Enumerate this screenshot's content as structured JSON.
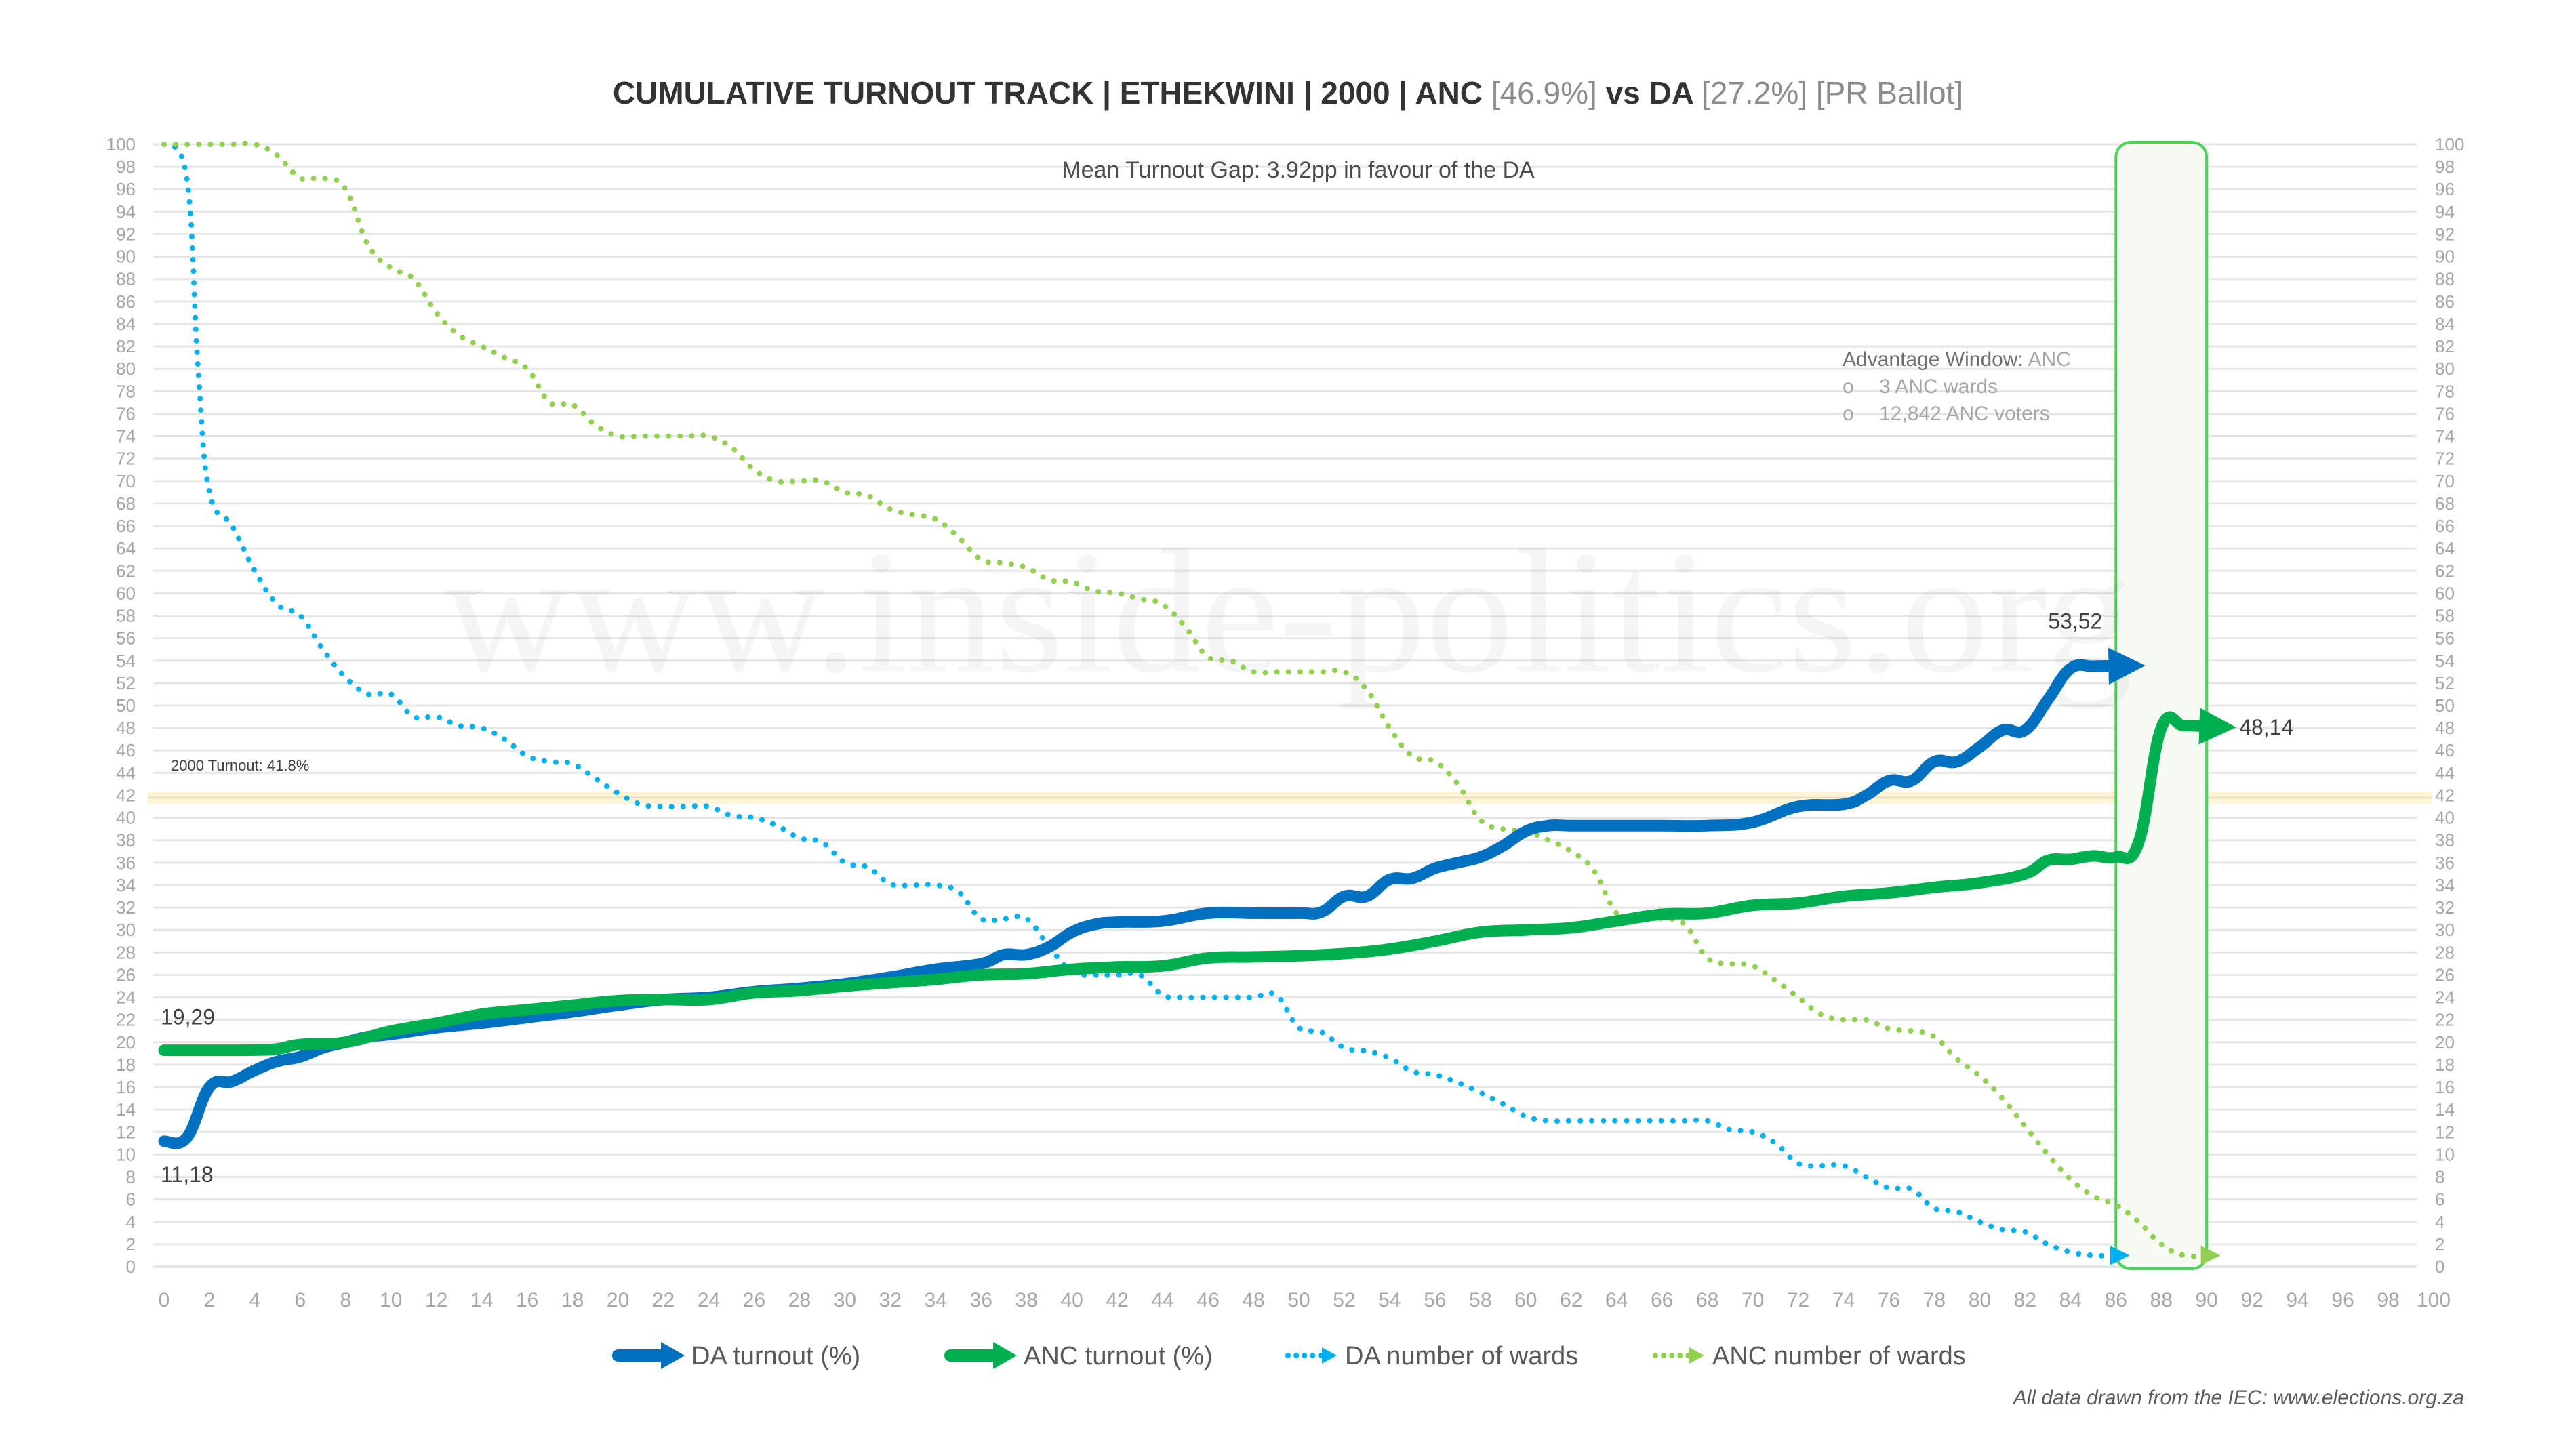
{
  "title": {
    "main": "CUMULATIVE TURNOUT TRACK | ETHEKWINI | 2000 | ANC ",
    "anc_share": "[46.9%]",
    "vs": " vs DA ",
    "da_share": "[27.2%]",
    "ballot": " [PR Ballot]"
  },
  "subtitle": "Mean Turnout Gap: 3.92pp in favour of the DA",
  "watermark": "www.inside-politics.org",
  "annotation": {
    "heading": "Advantage Window: ",
    "party": "ANC",
    "bullets": [
      "3 ANC wards",
      "12,842 ANC voters"
    ],
    "bullet_glyph": "o"
  },
  "reference_line": {
    "label": "2000 Turnout: 41.8%",
    "value": 41.8,
    "color": "#fff3d6"
  },
  "advantage_window": {
    "x_start": 86,
    "x_end": 90,
    "color": "#4cd35a"
  },
  "footer": "All data drawn from the IEC: www.elections.org.za",
  "colors": {
    "da_turnout": "#0070c0",
    "anc_turnout": "#00b050",
    "da_wards": "#00b0f0",
    "anc_wards": "#92d050",
    "grid": "#e6e6e6",
    "axis_text": "#a6a6a6"
  },
  "chart_data": {
    "type": "line",
    "title": "CUMULATIVE TURNOUT TRACK | ETHEKWINI | 2000 | ANC [46.9%] vs DA [27.2%] [PR Ballot]",
    "xlabel": "",
    "ylabel": "",
    "xlim": [
      0,
      100
    ],
    "ylim": [
      0,
      100
    ],
    "x_ticks": [
      0,
      2,
      4,
      6,
      8,
      10,
      12,
      14,
      16,
      18,
      20,
      22,
      24,
      26,
      28,
      30,
      32,
      34,
      36,
      38,
      40,
      42,
      44,
      46,
      48,
      50,
      52,
      54,
      56,
      58,
      60,
      62,
      64,
      66,
      68,
      70,
      72,
      74,
      76,
      78,
      80,
      82,
      84,
      86,
      88,
      90,
      92,
      94,
      96,
      98,
      100
    ],
    "y_ticks": [
      0,
      2,
      4,
      6,
      8,
      10,
      12,
      14,
      16,
      18,
      20,
      22,
      24,
      26,
      28,
      30,
      32,
      34,
      36,
      38,
      40,
      42,
      44,
      46,
      48,
      50,
      52,
      54,
      56,
      58,
      60,
      62,
      64,
      66,
      68,
      70,
      72,
      74,
      76,
      78,
      80,
      82,
      84,
      86,
      88,
      90,
      92,
      94,
      96,
      98,
      100
    ],
    "grid": true,
    "legend_position": "bottom",
    "series": [
      {
        "name": "DA turnout (%)",
        "style": "thick-arrow",
        "x": [
          0,
          1,
          2,
          3,
          4,
          5,
          6,
          7,
          8,
          9,
          10,
          12,
          14,
          16,
          18,
          20,
          22,
          24,
          26,
          28,
          30,
          32,
          34,
          36,
          37,
          38,
          39,
          40,
          41,
          42,
          44,
          46,
          48,
          50,
          51,
          52,
          53,
          54,
          55,
          56,
          57,
          58,
          59,
          60,
          61,
          62,
          64,
          66,
          68,
          70,
          72,
          74,
          75,
          76,
          77,
          78,
          79,
          80,
          81,
          82,
          83,
          84,
          85,
          86
        ],
        "y": [
          11.18,
          11.5,
          16,
          16.5,
          17.5,
          18.3,
          18.7,
          19.5,
          20,
          20.5,
          20.7,
          21.3,
          21.7,
          22.2,
          22.7,
          23.3,
          23.8,
          24,
          24.5,
          24.8,
          25.2,
          25.8,
          26.5,
          27,
          27.8,
          27.8,
          28.5,
          29.8,
          30.5,
          30.7,
          30.8,
          31.5,
          31.5,
          31.5,
          31.6,
          33,
          33,
          34.5,
          34.6,
          35.5,
          36,
          36.5,
          37.5,
          38.8,
          39.3,
          39.3,
          39.3,
          39.3,
          39.3,
          39.6,
          41,
          41.2,
          42,
          43.3,
          43.3,
          45,
          45,
          46.3,
          47.8,
          47.8,
          50.5,
          53.3,
          53.5,
          53.52
        ]
      },
      {
        "name": "ANC turnout (%)",
        "style": "thick-arrow",
        "x": [
          0,
          2,
          4,
          5,
          6,
          8,
          10,
          12,
          14,
          16,
          18,
          20,
          22,
          24,
          26,
          28,
          30,
          32,
          34,
          36,
          38,
          40,
          42,
          44,
          46,
          48,
          50,
          52,
          54,
          56,
          58,
          60,
          62,
          64,
          66,
          68,
          70,
          72,
          74,
          76,
          78,
          80,
          82,
          83,
          84,
          85,
          86,
          87,
          88,
          89,
          90
        ],
        "y": [
          19.29,
          19.29,
          19.3,
          19.4,
          19.8,
          20,
          21,
          21.7,
          22.5,
          22.9,
          23.3,
          23.7,
          23.8,
          23.8,
          24.4,
          24.6,
          25,
          25.3,
          25.6,
          26,
          26.1,
          26.5,
          26.7,
          26.8,
          27.5,
          27.6,
          27.7,
          27.9,
          28.3,
          29,
          29.8,
          30,
          30.2,
          30.8,
          31.4,
          31.5,
          32.2,
          32.4,
          33,
          33.3,
          33.8,
          34.2,
          35,
          36.2,
          36.3,
          36.6,
          36.5,
          37.8,
          48,
          48.2,
          48.14
        ]
      },
      {
        "name": "DA number of wards",
        "style": "dotted-arrow",
        "x": [
          0,
          1,
          1.5,
          2,
          3,
          4,
          5,
          6,
          7,
          8,
          9,
          10,
          11,
          12,
          13,
          14,
          15,
          16,
          17,
          18,
          19,
          20,
          21,
          22,
          23,
          24,
          25,
          26,
          27,
          28,
          29,
          30,
          31,
          32,
          33,
          34,
          35,
          36,
          37,
          38,
          39,
          40,
          41,
          42,
          43,
          44,
          45,
          46,
          47,
          48,
          49,
          50,
          51,
          52,
          53,
          54,
          55,
          56,
          57,
          58,
          59,
          60,
          61,
          62,
          63,
          64,
          65,
          66,
          67,
          68,
          69,
          70,
          71,
          72,
          73,
          74,
          75,
          76,
          77,
          78,
          79,
          80,
          81,
          82,
          83,
          84,
          85,
          86
        ],
        "y": [
          100,
          97,
          80,
          69,
          66,
          62,
          59,
          58,
          55,
          52.5,
          51,
          51,
          49,
          49,
          48.2,
          48,
          47,
          45.5,
          45,
          44.8,
          43.5,
          42.2,
          41.2,
          41,
          41,
          41,
          40.2,
          40,
          39.3,
          38.2,
          37.8,
          36,
          35.6,
          34.1,
          34,
          34,
          33.4,
          31,
          31,
          31,
          28.5,
          26.3,
          26,
          26,
          26,
          24.2,
          24,
          24,
          24,
          24,
          24.2,
          21.3,
          20.9,
          19.5,
          19.2,
          18.6,
          17.4,
          17.1,
          16.4,
          15.5,
          14.5,
          13.4,
          13,
          13,
          13,
          13,
          13,
          13,
          13,
          13,
          12.2,
          12,
          11,
          9.2,
          9,
          9,
          8,
          7,
          6.9,
          5.2,
          4.9,
          4,
          3.3,
          3.1,
          2,
          1.3,
          1,
          1
        ]
      },
      {
        "name": "ANC number of wards",
        "style": "dotted-arrow",
        "x": [
          0,
          1,
          2,
          3,
          4,
          5,
          6,
          7,
          8,
          9,
          10,
          11,
          12,
          13,
          14,
          15,
          16,
          17,
          18,
          19,
          20,
          21,
          22,
          23,
          24,
          25,
          26,
          27,
          28,
          29,
          30,
          31,
          32,
          33,
          34,
          35,
          36,
          37,
          38,
          39,
          40,
          41,
          42,
          43,
          44,
          45,
          46,
          47,
          48,
          49,
          50,
          51,
          52,
          53,
          54,
          55,
          56,
          57,
          58,
          59,
          60,
          61,
          62,
          63,
          64,
          65,
          66,
          67,
          68,
          69,
          70,
          71,
          72,
          73,
          74,
          75,
          76,
          77,
          78,
          79,
          80,
          81,
          82,
          83,
          84,
          85,
          86,
          87,
          88,
          89,
          90
        ],
        "y": [
          100,
          100,
          100,
          100,
          100,
          99,
          97,
          97,
          96,
          91,
          89,
          88,
          85,
          83,
          82,
          81,
          80,
          77,
          76.8,
          75,
          74,
          74,
          74,
          74,
          74,
          73,
          71,
          70,
          70,
          70,
          69,
          68.7,
          67.5,
          67,
          66.6,
          65,
          63,
          62.7,
          62.3,
          61.2,
          61,
          60.2,
          60,
          59.5,
          59,
          57,
          54.3,
          54,
          53,
          53,
          53,
          53,
          53,
          51.4,
          48,
          45.5,
          45,
          43,
          39.8,
          39,
          38.8,
          38,
          37,
          35.3,
          31.5,
          31,
          31,
          30.5,
          27.5,
          27,
          26.8,
          25.5,
          24,
          22.5,
          22,
          22,
          21.2,
          21,
          20.5,
          18.5,
          17,
          15,
          12.5,
          10,
          7.8,
          6.3,
          5.5,
          4,
          2,
          1,
          1
        ]
      }
    ],
    "data_labels": [
      {
        "series": "DA turnout (%)",
        "x": 0,
        "y": 11.18,
        "text": "11,18"
      },
      {
        "series": "ANC turnout (%)",
        "x": 0,
        "y": 19.29,
        "text": "19,29"
      },
      {
        "series": "DA turnout (%)",
        "x": 86,
        "y": 53.52,
        "text": "53,52"
      },
      {
        "series": "ANC turnout (%)",
        "x": 90,
        "y": 48.14,
        "text": "48,14"
      }
    ]
  }
}
